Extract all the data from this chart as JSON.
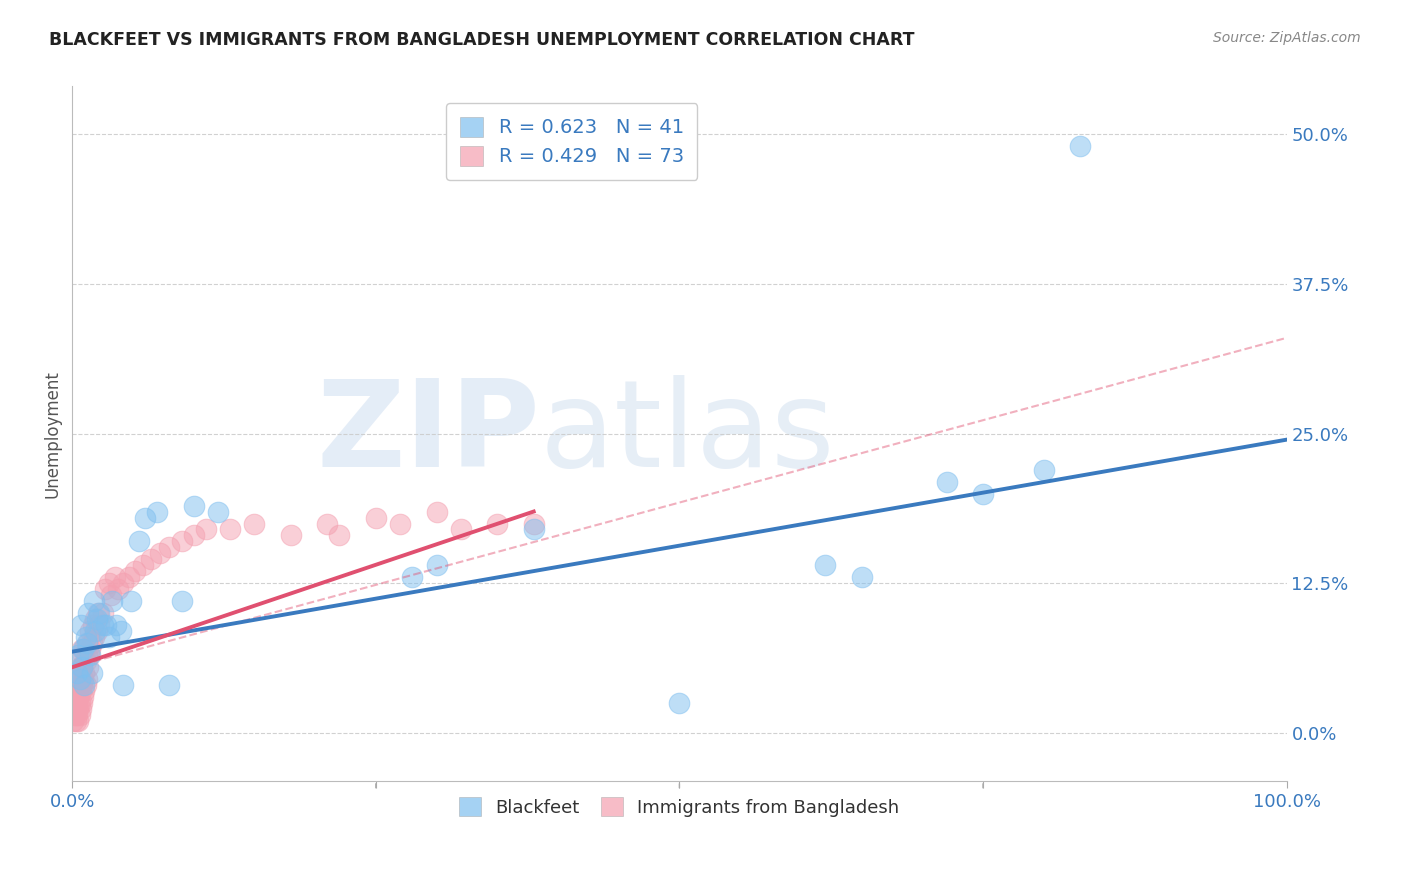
{
  "title": "BLACKFEET VS IMMIGRANTS FROM BANGLADESH UNEMPLOYMENT CORRELATION CHART",
  "source": "Source: ZipAtlas.com",
  "ylabel": "Unemployment",
  "xlabel": "",
  "background_color": "#ffffff",
  "watermark_zip": "ZIP",
  "watermark_atlas": "atlas",
  "blue_color": "#7fbfef",
  "blue_line_color": "#3a7abf",
  "pink_color": "#f4a0b0",
  "pink_line_color": "#e05070",
  "legend_R1": "R = 0.623",
  "legend_N1": "N = 41",
  "legend_R2": "R = 0.429",
  "legend_N2": "N = 73",
  "xmin": 0.0,
  "xmax": 1.0,
  "ymin": -0.04,
  "ymax": 0.54,
  "yticks": [
    0.0,
    0.125,
    0.25,
    0.375,
    0.5
  ],
  "ytick_labels": [
    "0.0%",
    "12.5%",
    "25.0%",
    "37.5%",
    "50.0%"
  ],
  "blue_scatter_x": [
    0.004,
    0.005,
    0.006,
    0.007,
    0.008,
    0.009,
    0.01,
    0.011,
    0.012,
    0.013,
    0.015,
    0.016,
    0.018,
    0.019,
    0.02,
    0.022,
    0.025,
    0.028,
    0.03,
    0.033,
    0.036,
    0.04,
    0.042,
    0.048,
    0.055,
    0.06,
    0.07,
    0.08,
    0.09,
    0.1,
    0.12,
    0.28,
    0.3,
    0.38,
    0.5,
    0.62,
    0.65,
    0.72,
    0.75,
    0.8,
    0.83
  ],
  "blue_scatter_y": [
    0.05,
    0.065,
    0.045,
    0.09,
    0.055,
    0.07,
    0.04,
    0.08,
    0.075,
    0.1,
    0.065,
    0.05,
    0.11,
    0.085,
    0.095,
    0.1,
    0.09,
    0.09,
    0.08,
    0.11,
    0.09,
    0.085,
    0.04,
    0.11,
    0.16,
    0.18,
    0.185,
    0.04,
    0.11,
    0.19,
    0.185,
    0.13,
    0.14,
    0.17,
    0.025,
    0.14,
    0.13,
    0.21,
    0.2,
    0.22,
    0.49
  ],
  "pink_scatter_x": [
    0.001,
    0.002,
    0.002,
    0.003,
    0.003,
    0.003,
    0.004,
    0.004,
    0.004,
    0.005,
    0.005,
    0.005,
    0.005,
    0.006,
    0.006,
    0.006,
    0.006,
    0.007,
    0.007,
    0.007,
    0.008,
    0.008,
    0.008,
    0.008,
    0.009,
    0.009,
    0.009,
    0.01,
    0.01,
    0.01,
    0.011,
    0.011,
    0.012,
    0.012,
    0.013,
    0.013,
    0.014,
    0.015,
    0.015,
    0.016,
    0.017,
    0.018,
    0.019,
    0.02,
    0.021,
    0.022,
    0.025,
    0.027,
    0.03,
    0.032,
    0.035,
    0.038,
    0.042,
    0.047,
    0.052,
    0.058,
    0.065,
    0.072,
    0.08,
    0.09,
    0.1,
    0.11,
    0.13,
    0.15,
    0.18,
    0.21,
    0.25,
    0.3,
    0.35,
    0.22,
    0.27,
    0.32,
    0.38
  ],
  "pink_scatter_y": [
    0.01,
    0.015,
    0.025,
    0.01,
    0.02,
    0.03,
    0.015,
    0.025,
    0.04,
    0.01,
    0.02,
    0.03,
    0.045,
    0.015,
    0.025,
    0.04,
    0.055,
    0.02,
    0.035,
    0.055,
    0.025,
    0.04,
    0.055,
    0.07,
    0.03,
    0.045,
    0.065,
    0.035,
    0.05,
    0.07,
    0.04,
    0.06,
    0.045,
    0.065,
    0.055,
    0.075,
    0.065,
    0.07,
    0.085,
    0.075,
    0.09,
    0.08,
    0.095,
    0.085,
    0.1,
    0.09,
    0.1,
    0.12,
    0.125,
    0.115,
    0.13,
    0.12,
    0.125,
    0.13,
    0.135,
    0.14,
    0.145,
    0.15,
    0.155,
    0.16,
    0.165,
    0.17,
    0.17,
    0.175,
    0.165,
    0.175,
    0.18,
    0.185,
    0.175,
    0.165,
    0.175,
    0.17,
    0.175
  ],
  "blue_line_x": [
    0.0,
    1.0
  ],
  "blue_line_y": [
    0.068,
    0.245
  ],
  "pink_line_x": [
    0.0,
    0.38
  ],
  "pink_line_y": [
    0.055,
    0.185
  ],
  "dashed_line_x": [
    0.0,
    1.0
  ],
  "dashed_line_y": [
    0.055,
    0.33
  ]
}
